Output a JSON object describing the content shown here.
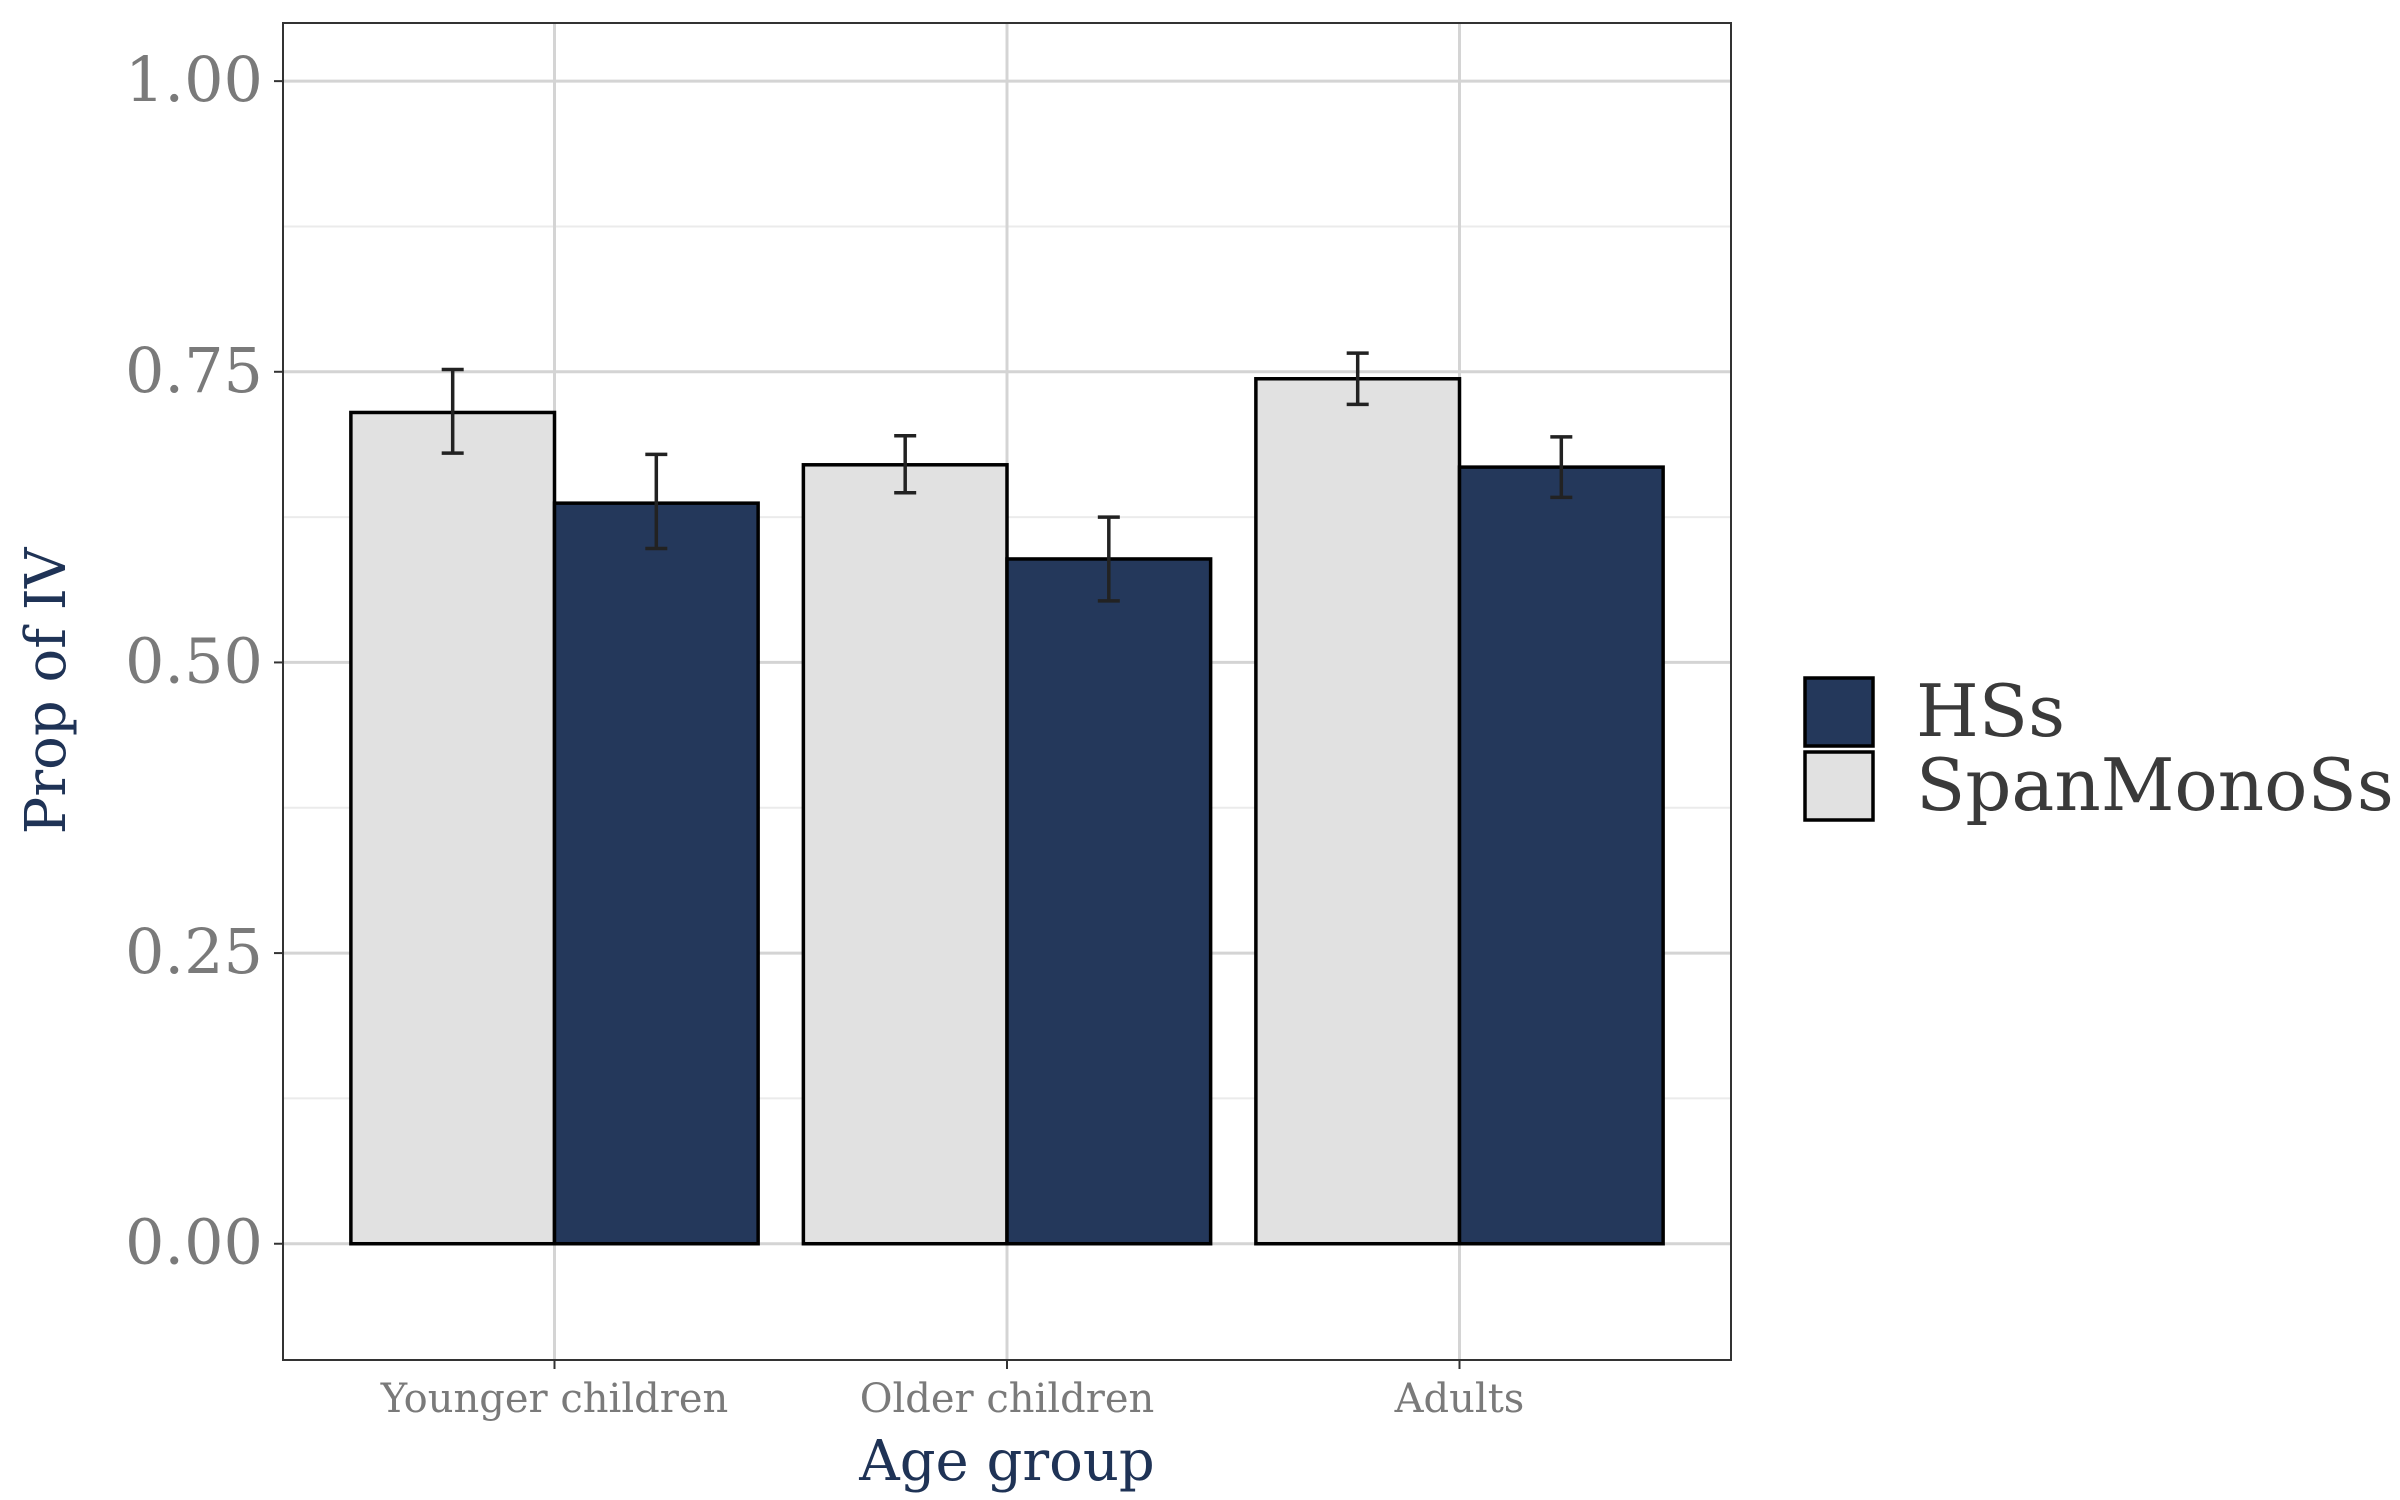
{
  "chart_data": {
    "type": "bar",
    "title": "",
    "xlabel": "Age group",
    "ylabel": "Prop of IV",
    "categories": [
      "Younger children",
      "Older children",
      "Adults"
    ],
    "ylim": [
      -0.1,
      1.05
    ],
    "yticks": [
      "0.00",
      "0.25",
      "0.50",
      "0.75",
      "1.00"
    ],
    "ytick_values": [
      0,
      0.25,
      0.5,
      0.75,
      1.0
    ],
    "grid": true,
    "legend_position": "right",
    "series": [
      {
        "name": "SpanMonoSs",
        "color": "#e1e1e1",
        "values": [
          0.715,
          0.67,
          0.744
        ],
        "error_low": [
          0.68,
          0.646,
          0.722
        ],
        "error_high": [
          0.752,
          0.695,
          0.766
        ]
      },
      {
        "name": "HSs",
        "color": "#24385b",
        "values": [
          0.637,
          0.589,
          0.668
        ],
        "error_low": [
          0.598,
          0.553,
          0.642
        ],
        "error_high": [
          0.679,
          0.625,
          0.694
        ]
      }
    ],
    "legend_order": [
      "HSs",
      "SpanMonoSs"
    ]
  }
}
